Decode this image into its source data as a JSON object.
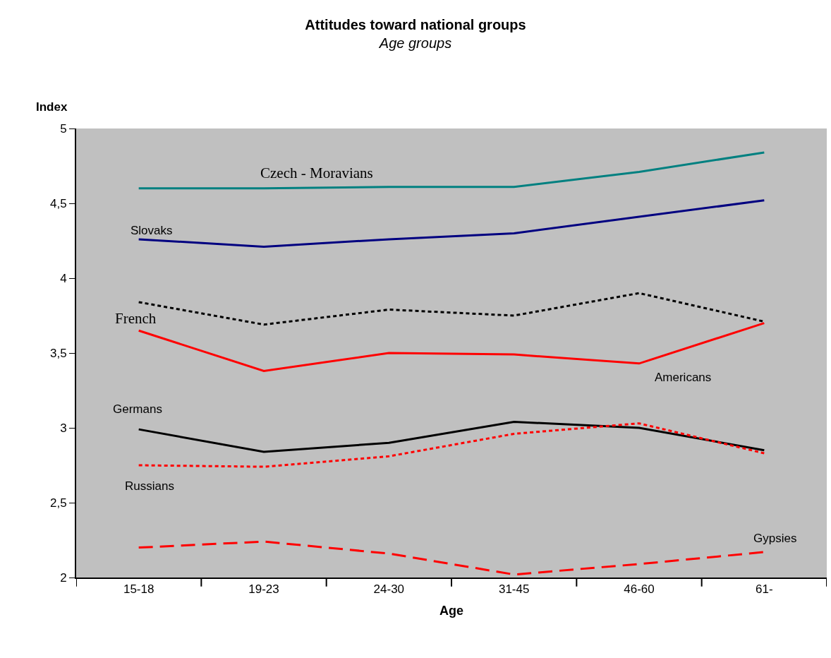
{
  "chart_data": {
    "type": "line",
    "title": "Attitudes toward national groups",
    "subtitle": "Age groups",
    "xlabel": "Age",
    "ylabel": "Index",
    "categories": [
      "15-18",
      "19-23",
      "24-30",
      "31-45",
      "46-60",
      "61-"
    ],
    "ylim": [
      2,
      5
    ],
    "yticks": [
      2,
      {
        "value": 2.5,
        "label": "2,5"
      },
      3,
      {
        "value": 3.5,
        "label": "3,5"
      },
      4,
      {
        "value": 4.5,
        "label": "4,5"
      },
      5
    ],
    "grid": false,
    "legend": false,
    "marker": "none",
    "series": [
      {
        "name": "Czech - Moravians",
        "color": "#008080",
        "line_style": "solid",
        "values": [
          4.6,
          4.6,
          4.61,
          4.61,
          4.71,
          4.84
        ]
      },
      {
        "name": "Slovaks",
        "color": "#000080",
        "line_style": "solid",
        "values": [
          4.26,
          4.21,
          4.26,
          4.3,
          4.41,
          4.52
        ]
      },
      {
        "name": "French",
        "color": "#000000",
        "line_style": "dotted",
        "values": [
          3.84,
          3.69,
          3.79,
          3.75,
          3.9,
          3.71
        ]
      },
      {
        "name": "Americans",
        "color": "#ff0000",
        "line_style": "solid",
        "values": [
          3.65,
          3.38,
          3.5,
          3.49,
          3.43,
          3.7
        ]
      },
      {
        "name": "Germans",
        "color": "#000000",
        "line_style": "solid",
        "values": [
          2.99,
          2.84,
          2.9,
          3.04,
          3.0,
          2.85
        ]
      },
      {
        "name": "Russians",
        "color": "#ff0000",
        "line_style": "dotted",
        "values": [
          2.75,
          2.74,
          2.81,
          2.96,
          3.03,
          2.83
        ]
      },
      {
        "name": "Gypsies",
        "color": "#ff0000",
        "line_style": "dashed",
        "values": [
          2.2,
          2.24,
          2.16,
          2.02,
          2.09,
          2.17
        ]
      }
    ]
  }
}
